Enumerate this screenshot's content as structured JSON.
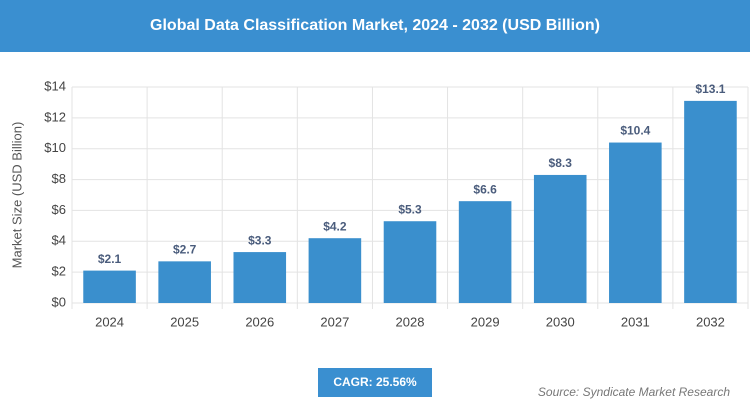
{
  "chart_data": {
    "type": "bar",
    "title": "Global Data Classification Market, 2024 - 2032 (USD Billion)",
    "y_axis_label": "Market Size (USD Billion)",
    "categories": [
      "2024",
      "2025",
      "2026",
      "2027",
      "2028",
      "2029",
      "2030",
      "2031",
      "2032"
    ],
    "values": [
      2.1,
      2.7,
      3.3,
      4.2,
      5.3,
      6.6,
      8.3,
      10.4,
      13.1
    ],
    "value_labels": [
      "$2.1",
      "$2.7",
      "$3.3",
      "$4.2",
      "$5.3",
      "$6.6",
      "$8.3",
      "$10.4",
      "$13.1"
    ],
    "color": "#3a8fcd",
    "ylim": [
      0,
      14
    ],
    "yticks": [
      {
        "value": 0,
        "label": "$0"
      },
      {
        "value": 2,
        "label": "$2"
      },
      {
        "value": 4,
        "label": "$4"
      },
      {
        "value": 6,
        "label": "$6"
      },
      {
        "value": 8,
        "label": "$8"
      },
      {
        "value": 10,
        "label": "$10"
      },
      {
        "value": 12,
        "label": "$12"
      },
      {
        "value": 14,
        "label": "$14"
      }
    ],
    "grid": true,
    "cagr": "CAGR: 25.56%",
    "source": "Source: Syndicate Market Research"
  }
}
